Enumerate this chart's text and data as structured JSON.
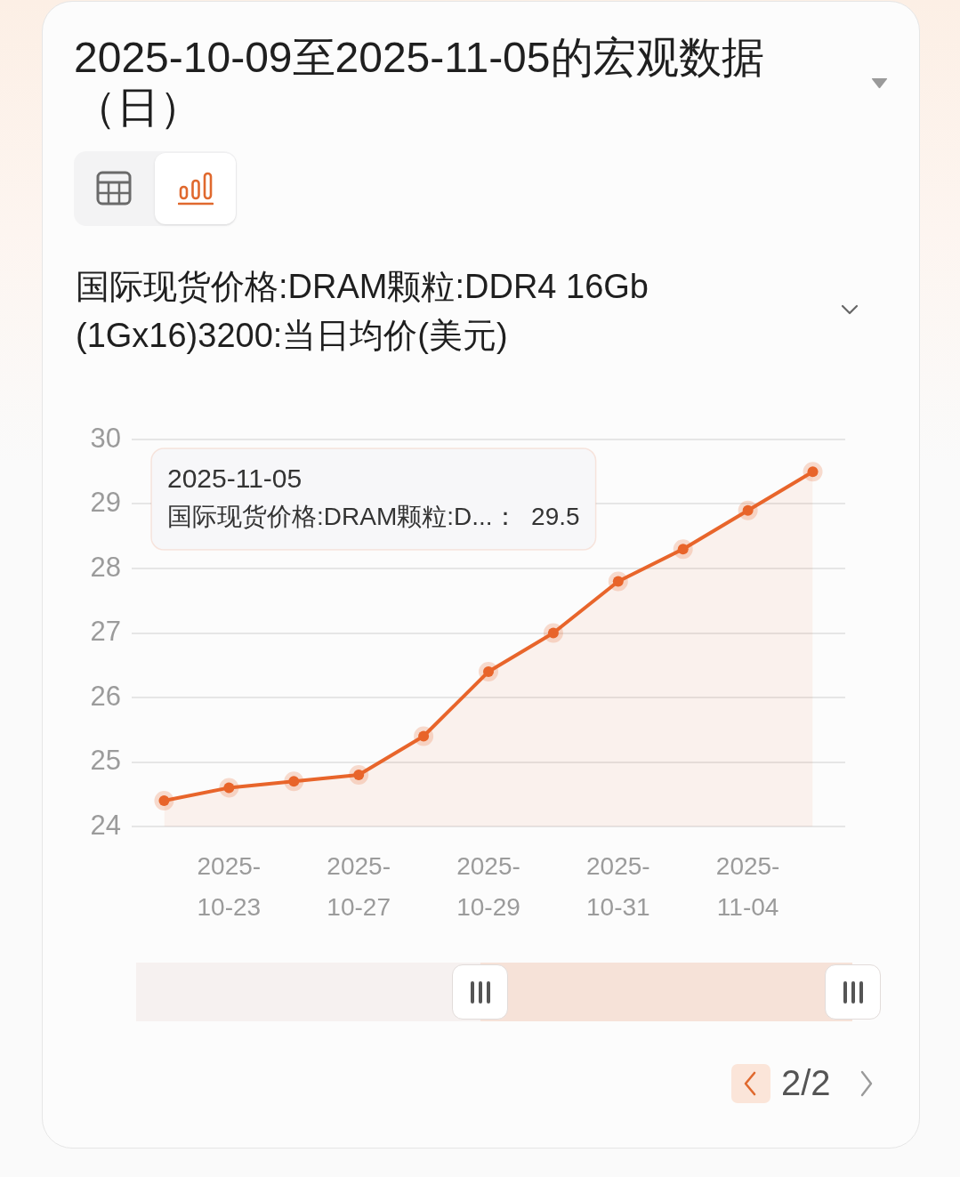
{
  "chart_data": {
    "type": "area",
    "title": "2025-10-09至2025-11-05的宏观数据（日）",
    "subtitle": "国际现货价格:DRAM颗粒:DDR4 16Gb (1Gx16)3200:当日均价(美元)",
    "categories": [
      null,
      "2025-10-23",
      null,
      "2025-10-27",
      null,
      "2025-10-29",
      null,
      "2025-10-31",
      null,
      "2025-11-04",
      null
    ],
    "values": [
      24.4,
      24.6,
      24.7,
      24.8,
      25.4,
      26.4,
      27.0,
      27.8,
      28.3,
      28.9,
      29.5
    ],
    "color": "#e8652b",
    "ylim": [
      24,
      30
    ],
    "yticks": [
      24,
      25,
      26,
      27,
      28,
      29,
      30
    ],
    "grid": "y",
    "marker": "circle",
    "annotations": [
      "2025-11-05",
      "国际现货价格:DRAM颗粒:D...：  29.5",
      "2/2"
    ]
  }
}
